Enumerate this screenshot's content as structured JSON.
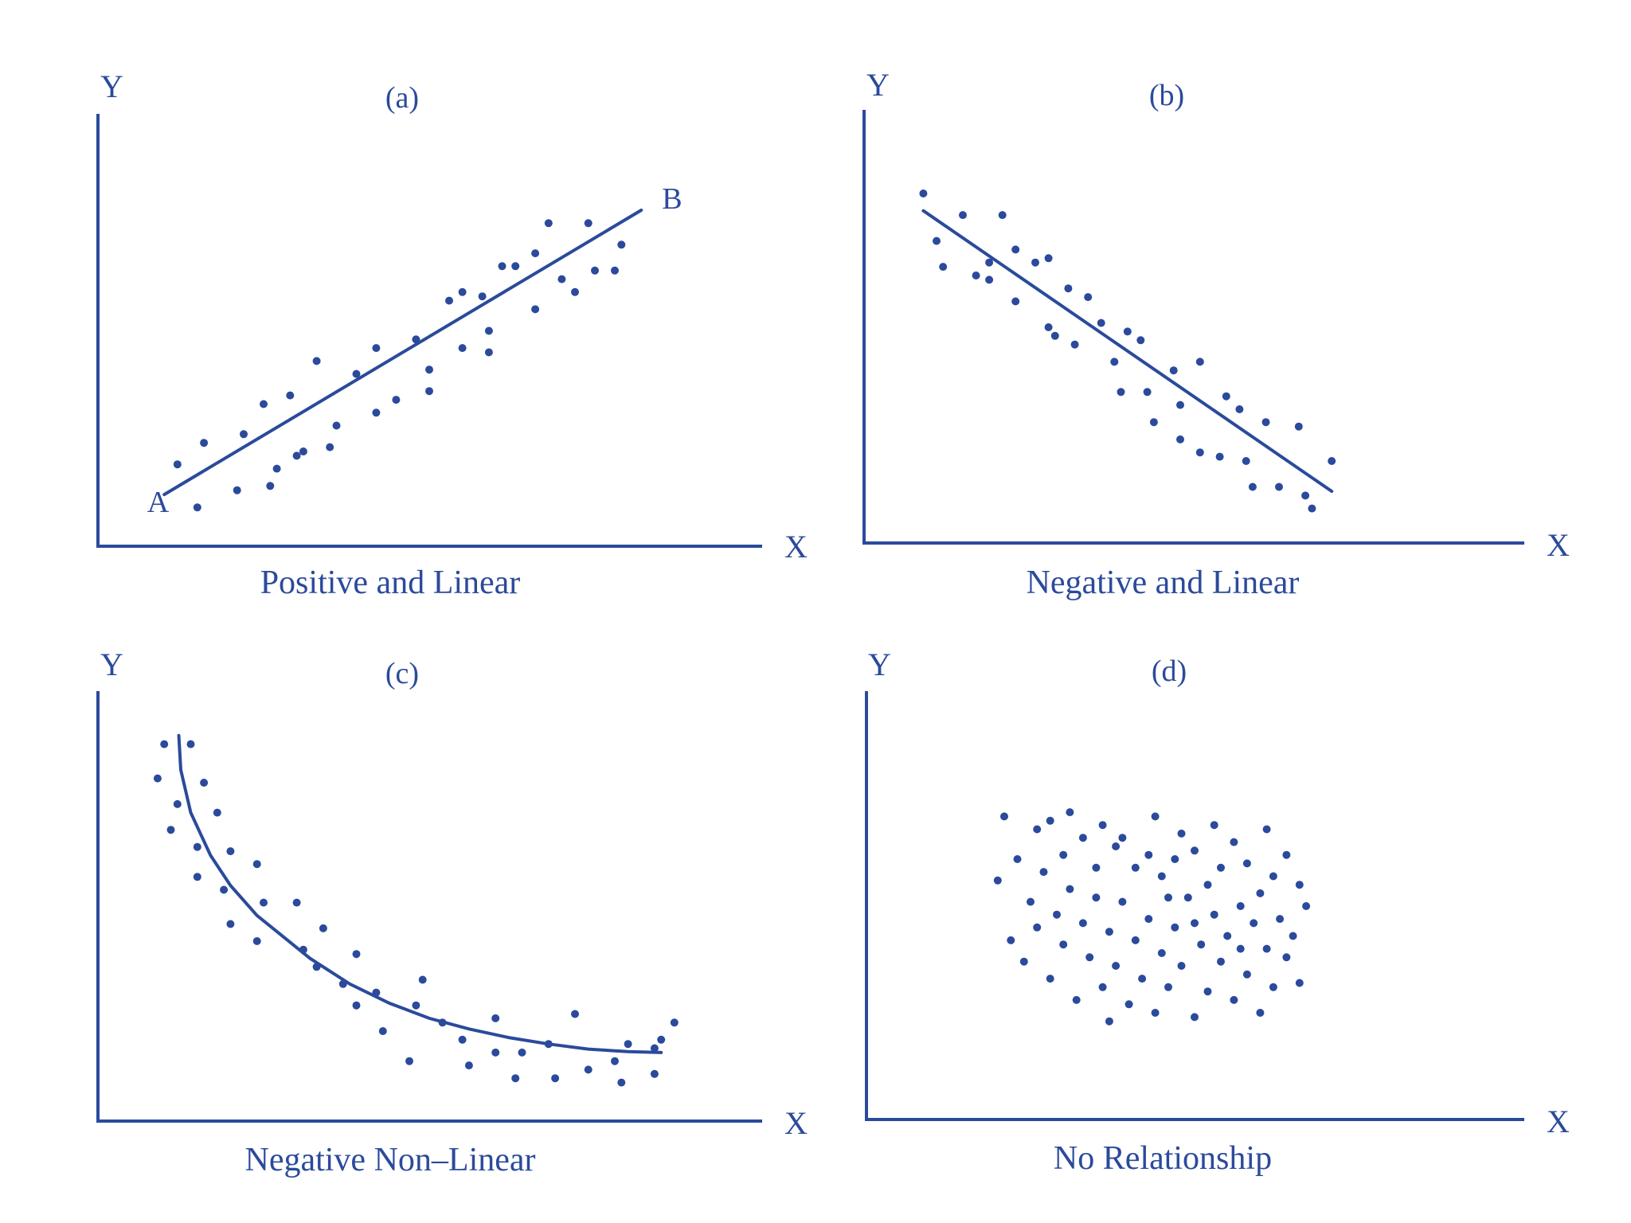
{
  "chart_data": [
    {
      "type": "scatter",
      "panel_label": "(a)",
      "caption": "Positive and Linear",
      "xlabel": "X",
      "ylabel": "Y",
      "xlim": [
        0,
        100
      ],
      "ylim": [
        0,
        100
      ],
      "fit": {
        "kind": "line",
        "x": [
          10,
          82
        ],
        "y": [
          12,
          78
        ],
        "start_label": "A",
        "end_label": "B"
      },
      "points": [
        [
          12,
          19
        ],
        [
          16,
          24
        ],
        [
          22,
          26
        ],
        [
          26,
          14
        ],
        [
          21,
          13
        ],
        [
          15,
          9
        ],
        [
          25,
          33
        ],
        [
          27,
          18
        ],
        [
          29,
          35
        ],
        [
          30,
          21
        ],
        [
          31,
          22
        ],
        [
          33,
          43
        ],
        [
          35,
          23
        ],
        [
          36,
          28
        ],
        [
          39,
          40
        ],
        [
          42,
          31
        ],
        [
          42,
          46
        ],
        [
          45,
          34
        ],
        [
          48,
          48
        ],
        [
          50,
          36
        ],
        [
          50,
          41
        ],
        [
          53,
          57
        ],
        [
          55,
          59
        ],
        [
          55,
          46
        ],
        [
          58,
          58
        ],
        [
          59,
          45
        ],
        [
          59,
          50
        ],
        [
          61,
          65
        ],
        [
          63,
          65
        ],
        [
          66,
          68
        ],
        [
          66,
          55
        ],
        [
          68,
          75
        ],
        [
          70,
          62
        ],
        [
          72,
          59
        ],
        [
          74,
          75
        ],
        [
          75,
          64
        ],
        [
          78,
          64
        ],
        [
          79,
          70
        ]
      ]
    },
    {
      "type": "scatter",
      "panel_label": "(b)",
      "caption": "Negative and Linear",
      "xlabel": "X",
      "ylabel": "Y",
      "xlim": [
        0,
        100
      ],
      "ylim": [
        0,
        100
      ],
      "fit": {
        "kind": "line",
        "x": [
          9,
          71
        ],
        "y": [
          77,
          12
        ]
      },
      "points": [
        [
          9,
          81
        ],
        [
          11,
          70
        ],
        [
          12,
          64
        ],
        [
          15,
          76
        ],
        [
          17,
          62
        ],
        [
          19,
          61
        ],
        [
          19,
          65
        ],
        [
          21,
          76
        ],
        [
          23,
          68
        ],
        [
          23,
          56
        ],
        [
          26,
          65
        ],
        [
          28,
          66
        ],
        [
          28,
          50
        ],
        [
          29,
          48
        ],
        [
          31,
          59
        ],
        [
          32,
          46
        ],
        [
          34,
          57
        ],
        [
          36,
          51
        ],
        [
          38,
          42
        ],
        [
          39,
          35
        ],
        [
          40,
          49
        ],
        [
          42,
          47
        ],
        [
          43,
          35
        ],
        [
          44,
          28
        ],
        [
          47,
          40
        ],
        [
          48,
          32
        ],
        [
          51,
          42
        ],
        [
          48,
          24
        ],
        [
          51,
          21
        ],
        [
          54,
          20
        ],
        [
          55,
          34
        ],
        [
          57,
          31
        ],
        [
          58,
          19
        ],
        [
          59,
          13
        ],
        [
          61,
          28
        ],
        [
          63,
          13
        ],
        [
          66,
          27
        ],
        [
          67,
          11
        ],
        [
          68,
          8
        ],
        [
          71,
          19
        ]
      ]
    },
    {
      "type": "scatter",
      "panel_label": "(c)",
      "caption": "Negative Non–Linear",
      "xlabel": "X",
      "ylabel": "Y",
      "xlim": [
        0,
        100
      ],
      "ylim": [
        0,
        100
      ],
      "fit": {
        "kind": "curve",
        "x": [
          12.2,
          12.5,
          14,
          17,
          20,
          24,
          28,
          32,
          38,
          44,
          50,
          56,
          62,
          68,
          74,
          80,
          85
        ],
        "y": [
          90,
          82,
          72,
          62,
          55,
          48,
          43,
          38,
          32,
          27.5,
          24,
          21.5,
          19.5,
          18,
          16.8,
          16.2,
          16
        ]
      },
      "points": [
        [
          10,
          88
        ],
        [
          9,
          80
        ],
        [
          14,
          88
        ],
        [
          16,
          79
        ],
        [
          12,
          74
        ],
        [
          18,
          72
        ],
        [
          11,
          68
        ],
        [
          15,
          64
        ],
        [
          20,
          63
        ],
        [
          15,
          57
        ],
        [
          19,
          54
        ],
        [
          24,
          60
        ],
        [
          20,
          46
        ],
        [
          25,
          51
        ],
        [
          24,
          42
        ],
        [
          30,
          51
        ],
        [
          31,
          40
        ],
        [
          34,
          45
        ],
        [
          33,
          36
        ],
        [
          37,
          32
        ],
        [
          39,
          39
        ],
        [
          39,
          27
        ],
        [
          42,
          30
        ],
        [
          43,
          21
        ],
        [
          48,
          27
        ],
        [
          47,
          14
        ],
        [
          49,
          33
        ],
        [
          52,
          23
        ],
        [
          55,
          19
        ],
        [
          56,
          13
        ],
        [
          60,
          24
        ],
        [
          60,
          16
        ],
        [
          63,
          10
        ],
        [
          64,
          16
        ],
        [
          68,
          18
        ],
        [
          69,
          10
        ],
        [
          72,
          25
        ],
        [
          74,
          12
        ],
        [
          78,
          14
        ],
        [
          80,
          18
        ],
        [
          79,
          9
        ],
        [
          84,
          17
        ],
        [
          84,
          11
        ],
        [
          87,
          23
        ],
        [
          85,
          19
        ]
      ]
    },
    {
      "type": "scatter",
      "panel_label": "(d)",
      "caption": "No Relationship",
      "xlabel": "X",
      "ylabel": "Y",
      "xlim": [
        0,
        100
      ],
      "ylim": [
        0,
        100
      ],
      "fit": null,
      "points": [
        [
          21,
          71
        ],
        [
          26,
          68
        ],
        [
          28,
          70
        ],
        [
          31,
          72
        ],
        [
          33,
          66
        ],
        [
          36,
          69
        ],
        [
          38,
          64
        ],
        [
          41,
          59
        ],
        [
          43,
          62
        ],
        [
          45,
          57
        ],
        [
          47,
          61
        ],
        [
          48,
          67
        ],
        [
          50,
          63
        ],
        [
          52,
          55
        ],
        [
          54,
          59
        ],
        [
          56,
          65
        ],
        [
          58,
          60
        ],
        [
          60,
          53
        ],
        [
          62,
          57
        ],
        [
          64,
          62
        ],
        [
          66,
          55
        ],
        [
          20,
          56
        ],
        [
          23,
          61
        ],
        [
          25,
          51
        ],
        [
          27,
          58
        ],
        [
          29,
          48
        ],
        [
          31,
          54
        ],
        [
          33,
          46
        ],
        [
          35,
          52
        ],
        [
          37,
          44
        ],
        [
          39,
          51
        ],
        [
          41,
          42
        ],
        [
          43,
          47
        ],
        [
          45,
          39
        ],
        [
          47,
          45
        ],
        [
          49,
          52
        ],
        [
          51,
          41
        ],
        [
          53,
          48
        ],
        [
          55,
          43
        ],
        [
          57,
          50
        ],
        [
          59,
          46
        ],
        [
          61,
          40
        ],
        [
          63,
          47
        ],
        [
          65,
          43
        ],
        [
          67,
          50
        ],
        [
          22,
          42
        ],
        [
          24,
          37
        ],
        [
          26,
          45
        ],
        [
          28,
          33
        ],
        [
          30,
          41
        ],
        [
          32,
          28
        ],
        [
          34,
          38
        ],
        [
          36,
          31
        ],
        [
          38,
          36
        ],
        [
          40,
          27
        ],
        [
          42,
          33
        ],
        [
          44,
          25
        ],
        [
          46,
          31
        ],
        [
          48,
          36
        ],
        [
          50,
          24
        ],
        [
          52,
          30
        ],
        [
          54,
          37
        ],
        [
          56,
          28
        ],
        [
          58,
          34
        ],
        [
          60,
          25
        ],
        [
          62,
          31
        ],
        [
          64,
          38
        ],
        [
          66,
          32
        ],
        [
          35,
          59
        ],
        [
          46,
          52
        ],
        [
          57,
          40
        ],
        [
          39,
          66
        ],
        [
          50,
          46
        ],
        [
          44,
          71
        ],
        [
          30,
          62
        ],
        [
          61,
          68
        ],
        [
          53,
          69
        ],
        [
          37,
          23
        ]
      ]
    }
  ]
}
